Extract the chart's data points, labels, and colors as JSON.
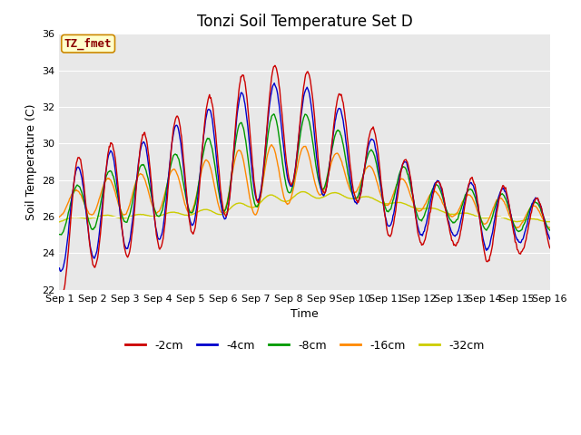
{
  "title": "Tonzi Soil Temperature Set D",
  "xlabel": "Time",
  "ylabel": "Soil Temperature (C)",
  "ylim": [
    22,
    36
  ],
  "xlim": [
    0,
    15
  ],
  "xtick_labels": [
    "Sep 1",
    "Sep 2",
    "Sep 3",
    "Sep 4",
    "Sep 5",
    "Sep 6",
    "Sep 7",
    "Sep 8",
    "Sep 9",
    "Sep 10",
    "Sep 11",
    "Sep 12",
    "Sep 13",
    "Sep 14",
    "Sep 15",
    "Sep 16"
  ],
  "ytick_values": [
    22,
    24,
    26,
    28,
    30,
    32,
    34,
    36
  ],
  "legend_label": "TZ_fmet",
  "series_labels": [
    "-2cm",
    "-4cm",
    "-8cm",
    "-16cm",
    "-32cm"
  ],
  "series_colors": [
    "#cc0000",
    "#0000cc",
    "#009900",
    "#ff8800",
    "#cccc00"
  ],
  "plot_bg_color": "#e8e8e8",
  "fig_bg_color": "#ffffff",
  "grid_color": "#ffffff",
  "title_fontsize": 12,
  "axis_fontsize": 9,
  "tick_fontsize": 8,
  "legend_fontsize": 9,
  "n_days": 15,
  "pts_per_day": 48,
  "base_2cm": [
    25.0,
    26.5,
    27.0,
    27.5,
    28.5,
    29.5,
    30.5,
    31.0,
    30.5,
    29.5,
    27.5,
    26.5,
    26.0,
    26.0,
    25.5,
    25.0
  ],
  "amp_2cm": [
    3.5,
    3.3,
    3.2,
    3.3,
    3.5,
    3.5,
    3.8,
    3.2,
    3.2,
    2.5,
    2.5,
    2.0,
    1.5,
    2.5,
    1.5,
    1.2
  ],
  "base_4cm": [
    25.5,
    26.5,
    27.0,
    27.5,
    28.5,
    29.0,
    30.0,
    30.5,
    30.0,
    29.0,
    27.5,
    26.8,
    26.2,
    26.2,
    25.8,
    25.2
  ],
  "amp_4cm": [
    2.5,
    2.8,
    2.8,
    2.8,
    3.0,
    3.2,
    3.2,
    2.8,
    2.8,
    2.2,
    2.0,
    1.8,
    1.2,
    2.0,
    1.2,
    1.0
  ],
  "base_8cm": [
    26.0,
    26.8,
    27.2,
    27.5,
    28.0,
    28.5,
    29.0,
    29.5,
    29.5,
    28.5,
    27.8,
    27.0,
    26.5,
    26.5,
    26.0,
    25.5
  ],
  "amp_8cm": [
    1.0,
    1.5,
    1.5,
    1.5,
    1.8,
    2.2,
    2.5,
    2.2,
    2.0,
    1.5,
    1.5,
    1.2,
    0.8,
    1.2,
    0.8,
    0.7
  ],
  "base_16cm": [
    26.5,
    27.0,
    27.2,
    27.3,
    27.5,
    27.8,
    28.0,
    28.3,
    28.5,
    28.2,
    27.5,
    27.0,
    26.5,
    26.5,
    26.0,
    25.5
  ],
  "amp_16cm": [
    0.5,
    0.9,
    1.1,
    1.1,
    1.3,
    1.6,
    1.9,
    1.6,
    1.3,
    0.9,
    0.9,
    0.7,
    0.5,
    0.9,
    0.6,
    0.5
  ],
  "base_32cm": [
    25.8,
    26.0,
    26.0,
    26.1,
    26.2,
    26.3,
    26.8,
    27.1,
    27.2,
    27.1,
    26.8,
    26.5,
    26.2,
    26.0,
    25.8,
    25.5
  ],
  "amp_32cm": [
    0.08,
    0.08,
    0.08,
    0.08,
    0.12,
    0.18,
    0.25,
    0.25,
    0.18,
    0.12,
    0.1,
    0.08,
    0.08,
    0.08,
    0.08,
    0.08
  ]
}
